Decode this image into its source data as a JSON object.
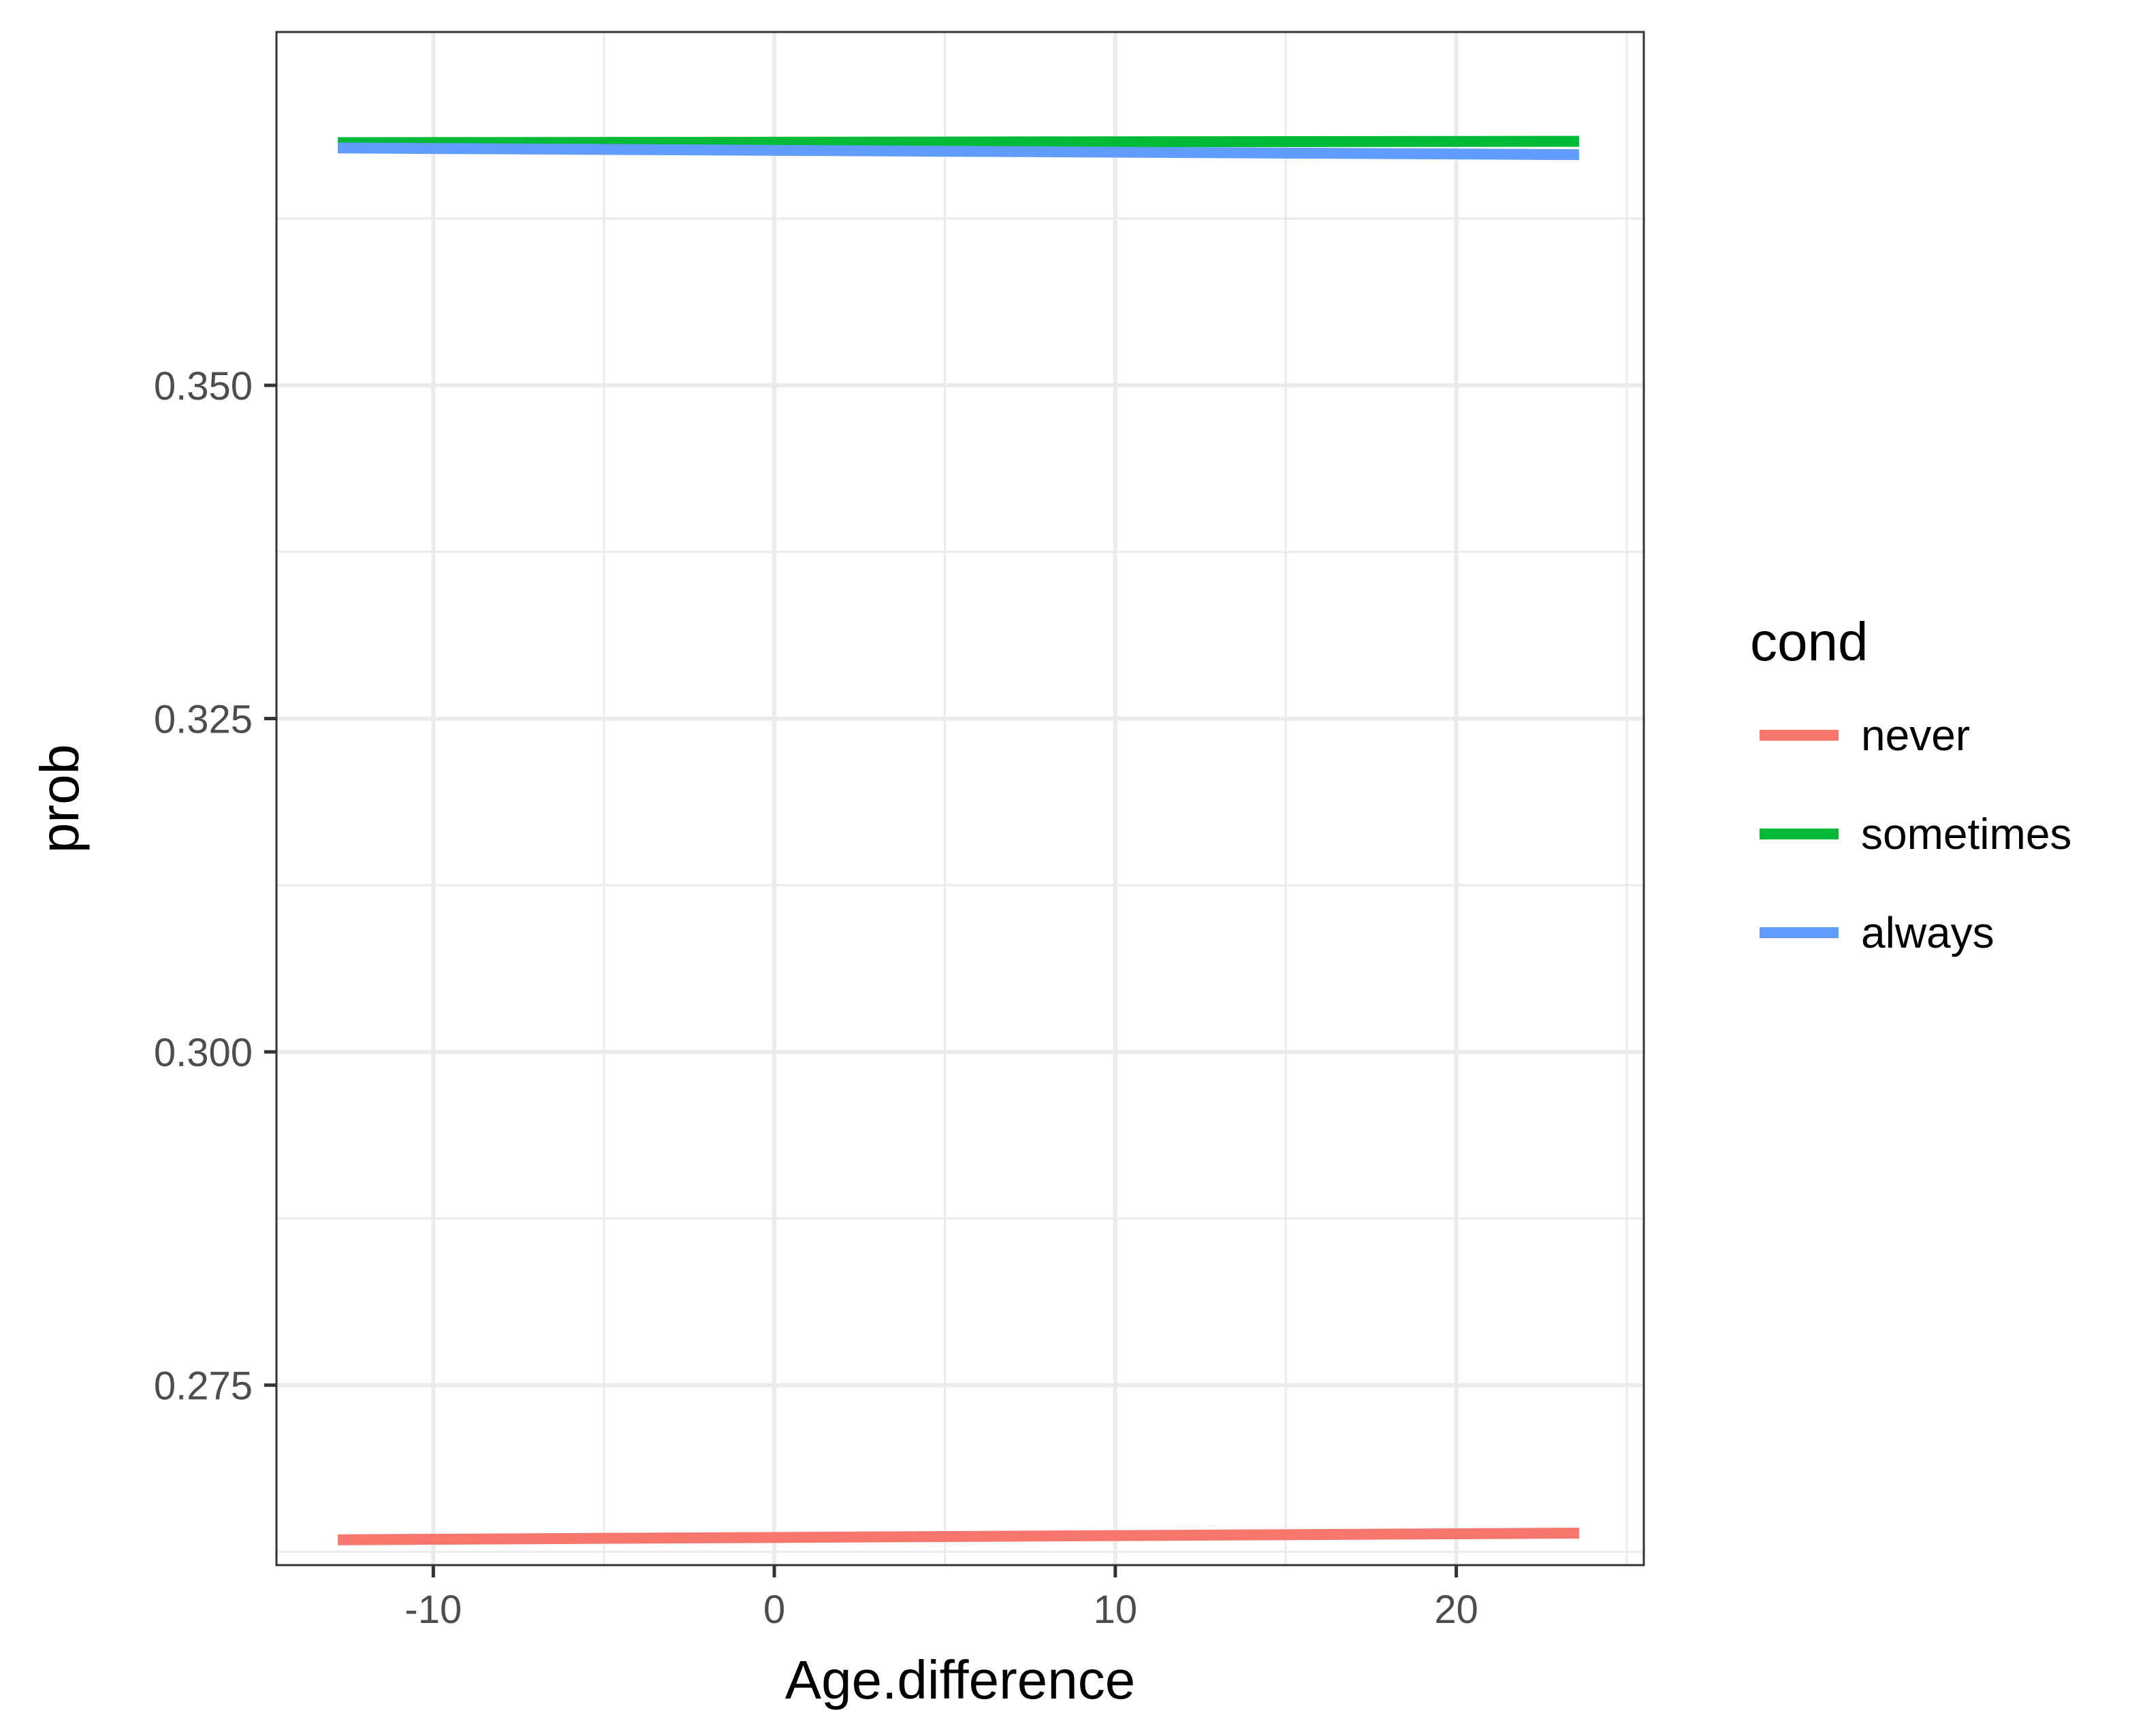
{
  "chart_data": {
    "type": "line",
    "title": "",
    "xlabel": "Age.difference",
    "ylabel": "prob",
    "xlim": [
      -14.6,
      25.5
    ],
    "ylim": [
      0.2615,
      0.3765
    ],
    "x_ticks": [
      -10,
      0,
      10,
      20
    ],
    "x_tick_labels": [
      "-10",
      "0",
      "10",
      "20"
    ],
    "x_minor": [
      -15,
      -5,
      5,
      15,
      25
    ],
    "y_ticks": [
      0.275,
      0.3,
      0.325,
      0.35
    ],
    "y_tick_labels": [
      "0.275",
      "0.300",
      "0.325",
      "0.350"
    ],
    "y_minor": [
      0.2625,
      0.2875,
      0.3125,
      0.3375,
      0.3625
    ],
    "grid": true,
    "legend": {
      "title": "cond",
      "position": "right",
      "entries": [
        "never",
        "sometimes",
        "always"
      ]
    },
    "series": [
      {
        "name": "never",
        "color": "#F8766D",
        "x": [
          -12.8,
          23.6
        ],
        "values": [
          0.2634,
          0.2639
        ]
      },
      {
        "name": "sometimes",
        "color": "#00BA38",
        "x": [
          -12.8,
          23.6
        ],
        "values": [
          0.3682,
          0.3683
        ]
      },
      {
        "name": "always",
        "color": "#619CFF",
        "x": [
          -12.8,
          23.6
        ],
        "values": [
          0.3678,
          0.3673
        ]
      }
    ]
  }
}
